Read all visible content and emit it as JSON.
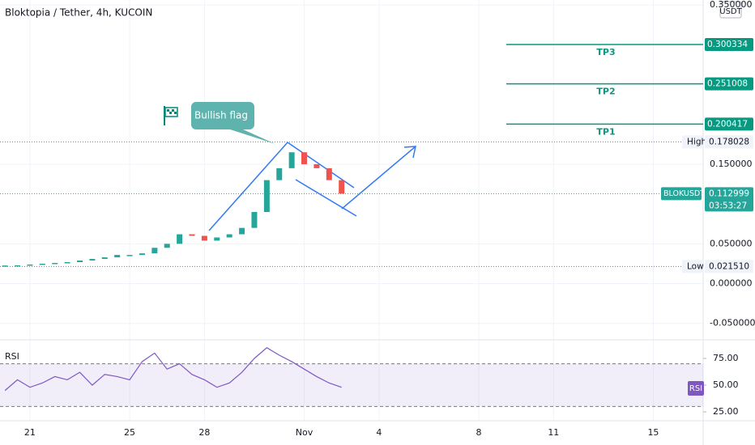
{
  "chart_data": [
    {
      "type": "candlestick",
      "title": "Bloktopia / Tether, 4h, KUCOIN",
      "ylabel": "USDT",
      "x": [
        -1,
        -0.5,
        0,
        0.5,
        1,
        1.5,
        2,
        2.5,
        3,
        3.5,
        4,
        4.5,
        5,
        5.5,
        6,
        6.5,
        7,
        7.5,
        8,
        8.5,
        9,
        9.5,
        10,
        10.5,
        11,
        11.5,
        12,
        12.5
      ],
      "values": [
        0.022,
        0.023,
        0.024,
        0.025,
        0.026,
        0.027,
        0.029,
        0.031,
        0.033,
        0.036,
        0.036,
        0.038,
        0.045,
        0.05,
        0.062,
        0.06,
        0.054,
        0.058,
        0.062,
        0.07,
        0.09,
        0.13,
        0.145,
        0.165,
        0.15,
        0.145,
        0.13,
        0.113
      ],
      "up_color": "#26a69a",
      "down_color": "#ef5350",
      "xlim": [
        -1.2,
        27
      ],
      "xticks": [
        {
          "value": 0,
          "label": "21"
        },
        {
          "value": 4,
          "label": "25"
        },
        {
          "value": 7,
          "label": "28"
        },
        {
          "value": 11,
          "label": "Nov"
        },
        {
          "value": 14,
          "label": "4"
        },
        {
          "value": 18,
          "label": "8"
        },
        {
          "value": 21,
          "label": "11"
        },
        {
          "value": 25,
          "label": "15"
        }
      ],
      "ylim": [
        -0.0706,
        0.3563
      ],
      "yticks": [
        {
          "value": 0.35,
          "label": "0.350000"
        },
        {
          "value": 0.15,
          "label": "0.150000"
        },
        {
          "value": 0.05,
          "label": "0.050000"
        },
        {
          "value": 0,
          "label": "0.000000"
        },
        {
          "value": -0.05,
          "label": "-0.050000"
        }
      ],
      "grid": true,
      "targets": [
        {
          "name": "TP3",
          "value": 0.300334,
          "label": "0.300334"
        },
        {
          "name": "TP2",
          "value": 0.251008,
          "label": "0.251008"
        },
        {
          "name": "TP1",
          "value": 0.200417,
          "label": "0.200417"
        }
      ],
      "high": {
        "name": "High",
        "value": 0.178028,
        "label": "0.178028"
      },
      "low": {
        "name": "Low",
        "value": 0.02151,
        "label": "0.021510"
      },
      "last": {
        "name": "BLOKUSDT",
        "value": 0.112999,
        "label": "0.112999",
        "countdown": "03:53:27"
      },
      "annotation": "Bullish flag"
    },
    {
      "type": "line",
      "name": "RSI",
      "color": "#7e57c2",
      "x": [
        -1,
        -0.5,
        0,
        0.5,
        1,
        1.5,
        2,
        2.5,
        3,
        3.5,
        4,
        4.5,
        5,
        5.5,
        6,
        6.5,
        7,
        7.5,
        8,
        8.5,
        9,
        9.5,
        10,
        10.5,
        11,
        11.5,
        12,
        12.5
      ],
      "values": [
        45,
        55,
        48,
        52,
        58,
        55,
        62,
        50,
        60,
        58,
        55,
        72,
        80,
        65,
        70,
        60,
        55,
        48,
        52,
        62,
        75,
        85,
        78,
        72,
        65,
        58,
        52,
        48
      ],
      "ylim": [
        16.7,
        92.4
      ],
      "yticks": [
        {
          "value": 75,
          "label": "75.00"
        },
        {
          "value": 50,
          "label": "50.00"
        },
        {
          "value": 25,
          "label": "25.00"
        }
      ],
      "bands": [
        30,
        70
      ]
    }
  ]
}
